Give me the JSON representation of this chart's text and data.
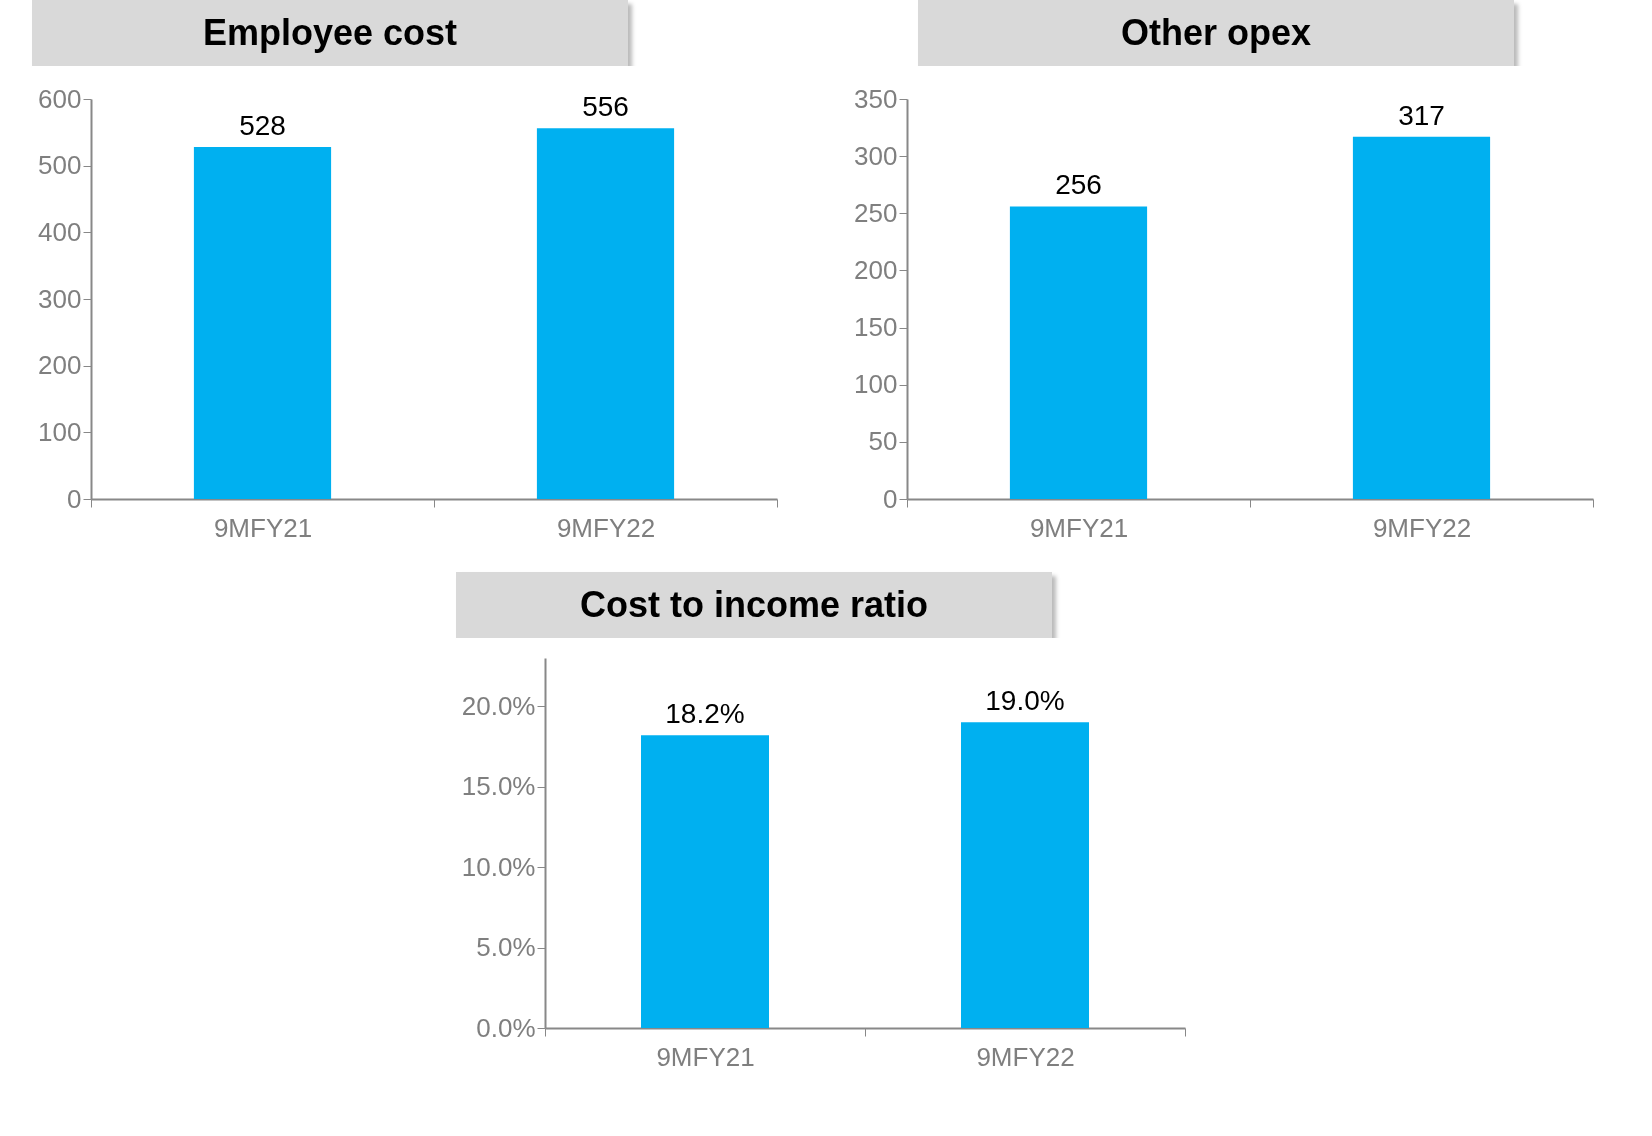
{
  "chart_data": [
    {
      "type": "bar",
      "title": "Employee cost",
      "categories": [
        "9MFY21",
        "9MFY22"
      ],
      "values": [
        528,
        556
      ],
      "color": "#00b0f0",
      "ylim": [
        0,
        600
      ],
      "yticks": [
        0,
        100,
        200,
        300,
        400,
        500,
        600
      ],
      "grid": false,
      "data_labels": true
    },
    {
      "type": "bar",
      "title": "Other opex",
      "categories": [
        "9MFY21",
        "9MFY22"
      ],
      "values": [
        256,
        317
      ],
      "color": "#00b0f0",
      "ylim": [
        0,
        350
      ],
      "yticks": [
        0,
        50,
        100,
        150,
        200,
        250,
        300,
        350
      ],
      "grid": false,
      "data_labels": true
    },
    {
      "type": "bar",
      "title": "Cost to income ratio",
      "categories": [
        "9MFY21",
        "9MFY22"
      ],
      "values": [
        18.2,
        19.0
      ],
      "color": "#00b0f0",
      "ylim": [
        0,
        23
      ],
      "yticks": [
        {
          "value": 0,
          "label": "0.0%"
        },
        {
          "value": 5,
          "label": "5.0%"
        },
        {
          "value": 10,
          "label": "10.0%"
        },
        {
          "value": 15,
          "label": "15.0%"
        },
        {
          "value": 20,
          "label": "20.0%"
        }
      ],
      "grid": false,
      "value_labels": [
        "18.2%",
        "19.0%"
      ]
    }
  ]
}
